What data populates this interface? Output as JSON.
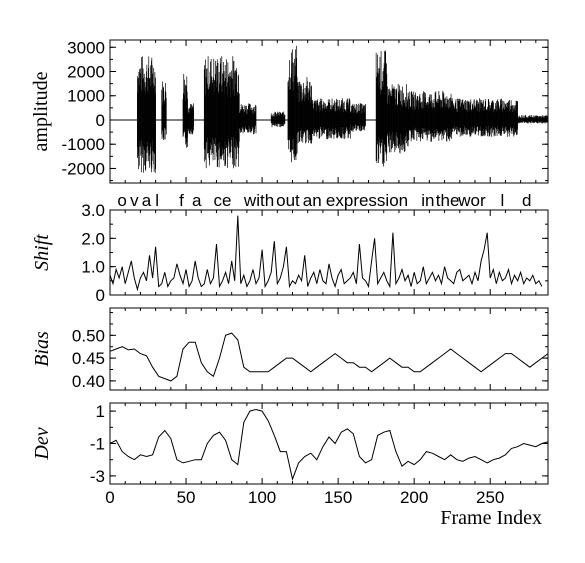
{
  "chart_data": [
    {
      "type": "line",
      "ylabel": "amplitude",
      "ylabel_italic": false,
      "xlim": [
        0,
        288
      ],
      "ylim": [
        -2600,
        3300
      ],
      "yticks": [
        3000,
        2000,
        1000,
        0,
        -1000,
        -2000
      ],
      "ytick_labels": [
        "3000",
        "2000",
        "1000",
        "0",
        "-1000",
        "-2000"
      ],
      "grid": false,
      "waveform_envelope": {
        "description_of_series": "speech waveform",
        "segments": [
          {
            "x": [
              18,
              30
            ],
            "top": 2700,
            "bottom": -2200
          },
          {
            "x": [
              34,
              37
            ],
            "top": 1700,
            "bottom": -900
          },
          {
            "x": [
              48,
              51
            ],
            "top": 2200,
            "bottom": -1200
          },
          {
            "x": [
              51,
              55
            ],
            "top": 700,
            "bottom": -600
          },
          {
            "x": [
              62,
              85
            ],
            "top": 2700,
            "bottom": -2000
          },
          {
            "x": [
              85,
              96
            ],
            "top": 700,
            "bottom": -600
          },
          {
            "x": [
              106,
              115
            ],
            "top": 350,
            "bottom": -300
          },
          {
            "x": [
              117,
              123
            ],
            "top": 3100,
            "bottom": -1800
          },
          {
            "x": [
              123,
              133
            ],
            "top": 1800,
            "bottom": -1000
          },
          {
            "x": [
              133,
              158
            ],
            "top": 900,
            "bottom": -800
          },
          {
            "x": [
              158,
              168
            ],
            "top": 700,
            "bottom": -500
          },
          {
            "x": [
              175,
              182
            ],
            "top": 2900,
            "bottom": -2000
          },
          {
            "x": [
              182,
              196
            ],
            "top": 1500,
            "bottom": -1400
          },
          {
            "x": [
              196,
              225
            ],
            "top": 1200,
            "bottom": -900
          },
          {
            "x": [
              225,
              268
            ],
            "top": 900,
            "bottom": -700
          },
          {
            "x": [
              268,
              288
            ],
            "top": 200,
            "bottom": -150
          }
        ]
      }
    },
    {
      "type": "line",
      "ylabel": "Shift",
      "ylabel_italic": true,
      "xlim": [
        0,
        288
      ],
      "ylim": [
        0,
        3.0
      ],
      "yticks": [
        3.0,
        2.0,
        1.0,
        0
      ],
      "ytick_labels": [
        "3.0",
        "2.0",
        "1.0",
        "0"
      ],
      "grid": false,
      "x_step": 2,
      "values": [
        0.7,
        0.4,
        0.9,
        0.6,
        1.0,
        0.4,
        0.8,
        1.2,
        0.6,
        0.2,
        0.6,
        0.8,
        0.5,
        1.4,
        0.6,
        1.7,
        0.3,
        0.4,
        0.8,
        0.3,
        0.5,
        0.6,
        1.1,
        0.7,
        0.4,
        0.9,
        0.3,
        0.5,
        1.2,
        0.6,
        0.3,
        0.4,
        0.9,
        0.4,
        0.6,
        1.8,
        0.3,
        0.5,
        0.8,
        0.4,
        1.2,
        0.5,
        2.8,
        0.4,
        0.7,
        0.3,
        0.5,
        0.9,
        0.4,
        0.6,
        1.6,
        0.3,
        0.5,
        0.8,
        1.9,
        0.4,
        0.6,
        1.0,
        1.7,
        0.3,
        0.5,
        0.4,
        0.7,
        0.5,
        1.4,
        0.3,
        0.6,
        0.8,
        0.4,
        0.9,
        0.5,
        0.4,
        1.1,
        0.6,
        0.3,
        0.7,
        0.9,
        0.4,
        0.5,
        0.6,
        0.8,
        0.4,
        1.8,
        0.6,
        0.5,
        0.3,
        1.2,
        2.0,
        0.4,
        0.6,
        0.8,
        0.5,
        0.3,
        2.2,
        0.4,
        0.6,
        0.9,
        0.5,
        0.7,
        0.3,
        0.8,
        0.4,
        0.5,
        1.0,
        0.4,
        0.6,
        0.8,
        0.5,
        0.7,
        0.4,
        1.0,
        0.6,
        0.5,
        0.4,
        0.8,
        0.9,
        0.5,
        0.6,
        0.7,
        0.4,
        0.8,
        0.5,
        1.2,
        1.6,
        2.2,
        0.6,
        0.9,
        0.4,
        0.8,
        0.5,
        0.6,
        0.9,
        0.4,
        0.7,
        0.5,
        0.8,
        0.4,
        0.6,
        0.5,
        0.7,
        0.4,
        0.5,
        0.3
      ]
    },
    {
      "type": "line",
      "ylabel": "Bias",
      "ylabel_italic": true,
      "xlim": [
        0,
        288
      ],
      "ylim": [
        0.38,
        0.56
      ],
      "yticks": [
        0.5,
        0.45,
        0.4
      ],
      "ytick_labels": [
        "0.50",
        "0.45",
        "0.40"
      ],
      "grid": false,
      "x_step": 4,
      "values": [
        0.465,
        0.47,
        0.475,
        0.468,
        0.47,
        0.46,
        0.455,
        0.43,
        0.41,
        0.405,
        0.4,
        0.41,
        0.47,
        0.485,
        0.485,
        0.44,
        0.42,
        0.41,
        0.45,
        0.5,
        0.505,
        0.49,
        0.43,
        0.42,
        0.42,
        0.42,
        0.42,
        0.43,
        0.44,
        0.45,
        0.45,
        0.44,
        0.43,
        0.42,
        0.43,
        0.44,
        0.45,
        0.46,
        0.45,
        0.44,
        0.44,
        0.43,
        0.43,
        0.42,
        0.43,
        0.44,
        0.45,
        0.44,
        0.43,
        0.43,
        0.42,
        0.42,
        0.43,
        0.44,
        0.45,
        0.46,
        0.47,
        0.46,
        0.45,
        0.44,
        0.43,
        0.42,
        0.43,
        0.44,
        0.45,
        0.46,
        0.46,
        0.45,
        0.44,
        0.43,
        0.44,
        0.45,
        0.46
      ]
    },
    {
      "type": "line",
      "ylabel": "Dev",
      "ylabel_italic": true,
      "xlim": [
        0,
        288
      ],
      "ylim": [
        -3.5,
        1.5
      ],
      "yticks": [
        1,
        -1,
        -3
      ],
      "ytick_labels": [
        "1",
        "-1",
        "-3"
      ],
      "grid": false,
      "xticks": [
        0,
        50,
        100,
        150,
        200,
        250
      ],
      "xtick_labels": [
        "0",
        "50",
        "100",
        "150",
        "200",
        "250"
      ],
      "xlabel": "Frame Index",
      "x_step": 4,
      "values": [
        -1.0,
        -0.8,
        -1.5,
        -1.8,
        -2.0,
        -1.7,
        -1.8,
        -1.7,
        -0.6,
        -0.2,
        -0.7,
        -2.0,
        -2.2,
        -2.1,
        -2.0,
        -2.0,
        -1.0,
        -0.5,
        -0.3,
        -0.8,
        -2.0,
        -2.3,
        0.3,
        1.0,
        1.1,
        1.0,
        0.4,
        -0.5,
        -1.5,
        -1.5,
        -3.2,
        -2.2,
        -1.8,
        -1.6,
        -2.0,
        -1.2,
        -0.6,
        -1.0,
        -0.3,
        -0.1,
        -0.4,
        -1.8,
        -2.2,
        -2.0,
        -0.5,
        -0.3,
        -0.2,
        -1.5,
        -2.4,
        -2.1,
        -2.3,
        -2.0,
        -1.5,
        -1.6,
        -1.8,
        -2.0,
        -1.7,
        -2.0,
        -2.1,
        -1.9,
        -1.8,
        -2.0,
        -2.2,
        -2.0,
        -1.9,
        -1.7,
        -1.3,
        -1.2,
        -1.0,
        -1.1,
        -1.2,
        -1.0,
        -0.9
      ]
    }
  ],
  "annotation": {
    "phoneme_labels": [
      {
        "text": "o",
        "frame": 8
      },
      {
        "text": "v",
        "frame": 16
      },
      {
        "text": "a",
        "frame": 24
      },
      {
        "text": "l",
        "frame": 31
      },
      {
        "text": "f",
        "frame": 47
      },
      {
        "text": "a",
        "frame": 57
      },
      {
        "text": "ce",
        "frame": 74
      },
      {
        "text": "with",
        "frame": 98
      },
      {
        "text": "out",
        "frame": 117
      },
      {
        "text": "an",
        "frame": 133
      },
      {
        "text": "expression",
        "frame": 169
      },
      {
        "text": "in",
        "frame": 209
      },
      {
        "text": "the",
        "frame": 222
      },
      {
        "text": "wor",
        "frame": 238
      },
      {
        "text": "l",
        "frame": 258
      },
      {
        "text": "d",
        "frame": 274
      }
    ]
  },
  "colors": {
    "line": "#000000",
    "axes": "#000000",
    "background": "#ffffff"
  }
}
